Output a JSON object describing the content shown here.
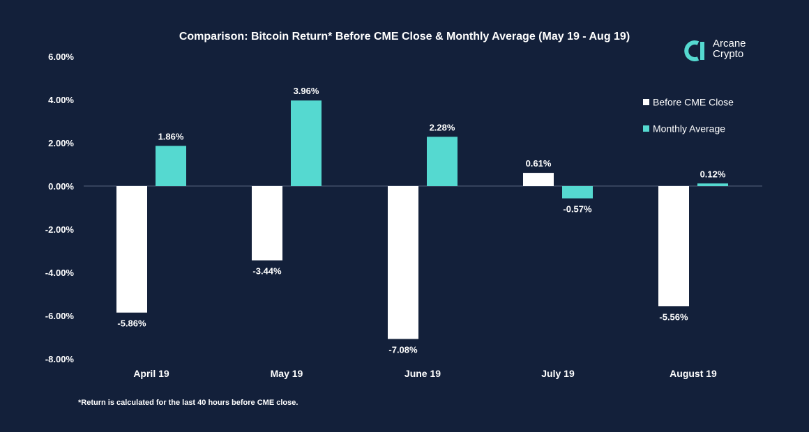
{
  "chart_data": {
    "type": "bar",
    "title": "Comparison: Bitcoin Return* Before CME Close & Monthly Average (May 19 - Aug 19)",
    "categories": [
      "April 19",
      "May 19",
      "June 19",
      "July 19",
      "August 19"
    ],
    "series": [
      {
        "name": "Before CME Close",
        "color": "#ffffff",
        "values": [
          -5.86,
          -3.44,
          -7.08,
          0.61,
          -5.56
        ],
        "labels": [
          "-5.86%",
          "-3.44%",
          "-7.08%",
          "0.61%",
          "-5.56%"
        ]
      },
      {
        "name": "Monthly Average",
        "color": "#55d9d0",
        "values": [
          1.86,
          3.96,
          2.28,
          -0.57,
          0.12
        ],
        "labels": [
          "1.86%",
          "3.96%",
          "2.28%",
          "-0.57%",
          "0.12%"
        ]
      }
    ],
    "yticks": [
      6,
      4,
      2,
      0,
      -2,
      -4,
      -6,
      -8
    ],
    "ytick_labels": [
      "6.00%",
      "4.00%",
      "2.00%",
      "0.00%",
      "-2.00%",
      "-4.00%",
      "-6.00%",
      "-8.00%"
    ],
    "ylim": [
      -8,
      6
    ],
    "grid": false,
    "legend_position": "top-right",
    "xlabel": "",
    "ylabel": ""
  },
  "logo": {
    "line1": "Arcane",
    "line2": "Crypto",
    "icon": "arcane-logo-icon"
  },
  "footnote": "*Return is calculated for the last 40 hours before CME close.",
  "colors": {
    "background": "#13203a",
    "accent": "#55d9d0",
    "bar_white": "#ffffff",
    "axis_line": "#4a5670"
  }
}
